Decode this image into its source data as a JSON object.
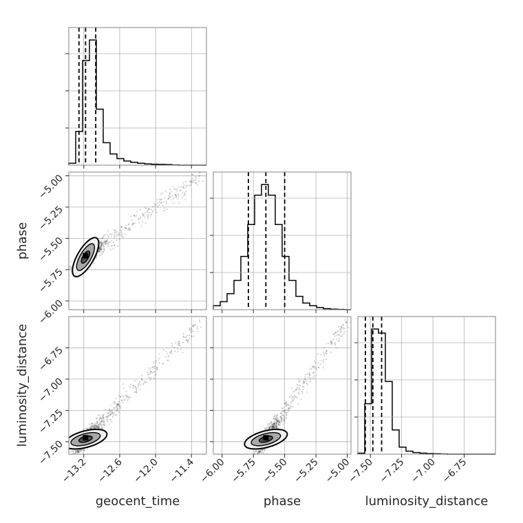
{
  "chart_data": {
    "type": "scatter",
    "kind": "corner-plot",
    "parameters": [
      "geocent_time",
      "phase",
      "luminosity_distance"
    ],
    "x_ticks": {
      "geocent_time": [
        "−13.2",
        "−12.6",
        "−12.0",
        "−11.4"
      ],
      "phase": [
        "−6.00",
        "−5.75",
        "−5.50",
        "−5.25",
        "−5.00"
      ],
      "luminosity_distance": [
        "−7.50",
        "−7.25",
        "−7.00",
        "−6.75"
      ]
    },
    "y_ticks": {
      "phase": [
        "−5.00",
        "−5.25",
        "−5.50",
        "−5.75",
        "−6.00"
      ],
      "luminosity_distance": [
        "−6.75",
        "−7.00",
        "−7.25",
        "−7.50"
      ]
    },
    "ranges": {
      "geocent_time": [
        -13.45,
        -11.15
      ],
      "phase": [
        -6.07,
        -4.97
      ],
      "luminosity_distance": [
        -7.6,
        -6.5
      ]
    },
    "quantiles": {
      "geocent_time": [
        -13.28,
        -13.17,
        -13.0
      ],
      "phase": [
        -5.79,
        -5.65,
        -5.5
      ],
      "luminosity_distance": [
        -7.54,
        -7.48,
        -7.41
      ]
    },
    "histograms": {
      "geocent_time": {
        "edges": [
          -13.45,
          -13.335,
          -13.22,
          -13.105,
          -12.99,
          -12.875,
          -12.76,
          -12.645,
          -12.53,
          -12.415,
          -12.3,
          -12.185,
          -12.07,
          -11.955,
          -11.84,
          -11.725,
          -11.61,
          -11.495,
          -11.38,
          -11.265,
          -11.15
        ],
        "counts": [
          0.01,
          0.18,
          0.56,
          0.67,
          0.3,
          0.12,
          0.06,
          0.035,
          0.022,
          0.015,
          0.01,
          0.007,
          0.005,
          0.004,
          0.003,
          0.001,
          0,
          0,
          0,
          0
        ]
      },
      "phase": {
        "edges": [
          -6.07,
          -6.015,
          -5.96,
          -5.905,
          -5.85,
          -5.795,
          -5.74,
          -5.685,
          -5.63,
          -5.575,
          -5.52,
          -5.465,
          -5.41,
          -5.355,
          -5.3,
          -5.245,
          -5.19,
          -5.135,
          -5.08,
          -5.025,
          -4.97
        ],
        "counts": [
          0.015,
          0.03,
          0.06,
          0.11,
          0.2,
          0.32,
          0.43,
          0.47,
          0.43,
          0.32,
          0.2,
          0.11,
          0.05,
          0.025,
          0.015,
          0.008,
          0.004,
          0.002,
          0.001,
          0
        ]
      },
      "luminosity_distance": {
        "edges": [
          -7.6,
          -7.545,
          -7.49,
          -7.435,
          -7.38,
          -7.325,
          -7.27,
          -7.215,
          -7.16,
          -7.105,
          -7.05,
          -6.995,
          -6.94,
          -6.885,
          -6.83,
          -6.775,
          -6.72,
          -6.665,
          -6.61,
          -6.555,
          -6.5
        ],
        "counts": [
          0.005,
          0.25,
          0.62,
          0.6,
          0.36,
          0.12,
          0.035,
          0.015,
          0.008,
          0.005,
          0.003,
          0.002,
          0.001,
          0,
          0,
          0,
          0,
          0,
          0,
          0
        ]
      }
    },
    "grid": true
  }
}
